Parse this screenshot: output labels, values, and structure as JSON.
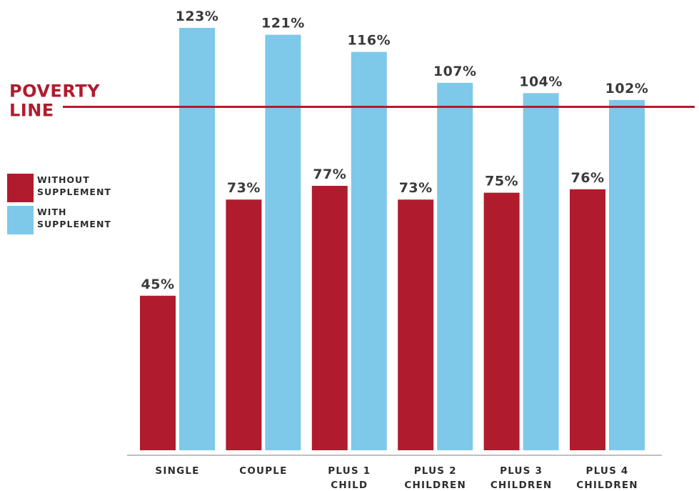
{
  "chart_data": {
    "type": "bar",
    "categories": [
      [
        "SINGLE"
      ],
      [
        "COUPLE"
      ],
      [
        "PLUS 1",
        "CHILD"
      ],
      [
        "PLUS 2",
        "CHILDREN"
      ],
      [
        "PLUS 3",
        "CHILDREN"
      ],
      [
        "PLUS 4",
        "CHILDREN"
      ]
    ],
    "series": [
      {
        "name": [
          "WITHOUT",
          "SUPPLEMENT"
        ],
        "color": "#b01c2e",
        "values": [
          45,
          73,
          77,
          73,
          75,
          76
        ],
        "labels": [
          "45%",
          "73%",
          "77%",
          "73%",
          "75%",
          "76%"
        ]
      },
      {
        "name": [
          "WITH",
          "SUPPLEMENT"
        ],
        "color": "#7ec8ea",
        "values": [
          123,
          121,
          116,
          107,
          104,
          102
        ],
        "labels": [
          "123%",
          "121%",
          "116%",
          "107%",
          "104%",
          "102%"
        ]
      }
    ],
    "reference_line": {
      "value": 100,
      "label": [
        "POVERTY",
        "LINE"
      ],
      "color": "#b01c2e"
    },
    "ylim": [
      0,
      123
    ],
    "grid": false,
    "legend_position": "left"
  }
}
